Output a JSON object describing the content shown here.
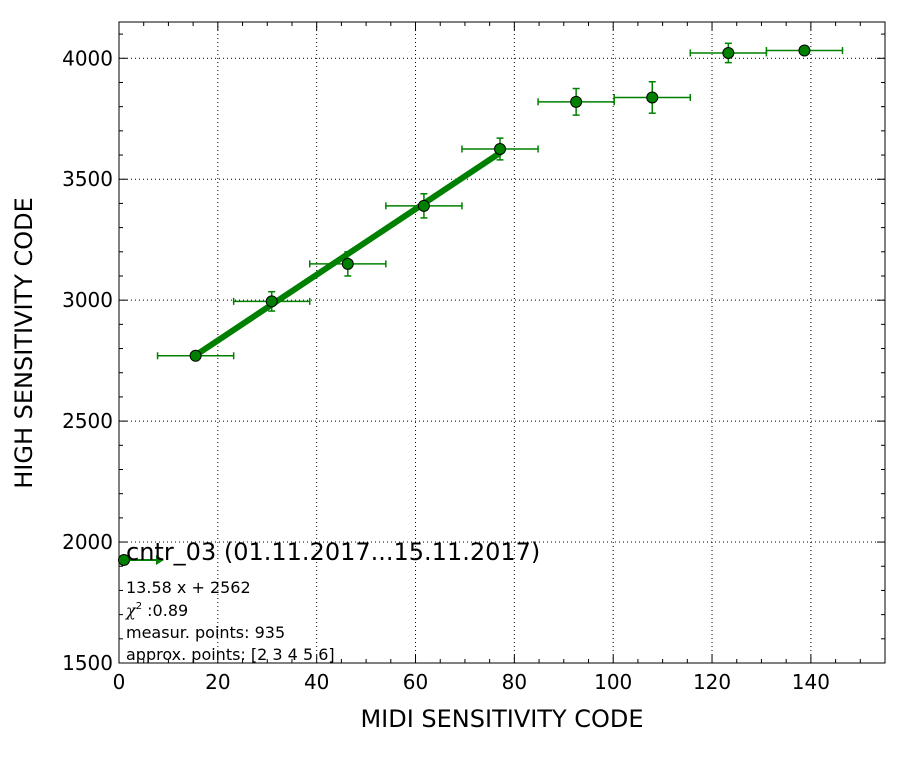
{
  "chart_data": {
    "type": "scatter",
    "xlabel": "MIDI SENSITIVITY CODE",
    "ylabel": "HIGH SENSITIVITY CODE",
    "xlim": [
      0,
      155
    ],
    "ylim": [
      1500,
      4150
    ],
    "x_ticks": [
      "0",
      "20",
      "40",
      "60",
      "80",
      "100",
      "120",
      "140"
    ],
    "y_ticks": [
      "1500",
      "2000",
      "2500",
      "3000",
      "3500",
      "4000"
    ],
    "grid": true,
    "colors": {
      "series": "#008000",
      "marker_edge": "#000000"
    },
    "series": [
      {
        "points": [
          {
            "x": 15.5,
            "y": 2770,
            "xerr": 7.7,
            "yerr": 0
          },
          {
            "x": 30.9,
            "y": 2995,
            "xerr": 7.7,
            "yerr": 40
          },
          {
            "x": 46.3,
            "y": 3150,
            "xerr": 7.7,
            "yerr": 50
          },
          {
            "x": 61.7,
            "y": 3390,
            "xerr": 7.7,
            "yerr": 50
          },
          {
            "x": 77.1,
            "y": 3625,
            "xerr": 7.7,
            "yerr": 45
          },
          {
            "x": 92.5,
            "y": 3820,
            "xerr": 7.7,
            "yerr": 55
          },
          {
            "x": 107.9,
            "y": 3838,
            "xerr": 7.7,
            "yerr": 65
          },
          {
            "x": 123.3,
            "y": 4022,
            "xerr": 7.7,
            "yerr": 40
          },
          {
            "x": 138.7,
            "y": 4032,
            "xerr": 7.7,
            "yerr": 15
          }
        ]
      }
    ],
    "fit": {
      "slope": 13.58,
      "intercept": 2562,
      "x_start": 15.5,
      "x_end": 77.1
    },
    "legend": {
      "title": "cntr_03 (01.11.2017...15.11.2017)",
      "equation": "13.58 x + 2562",
      "chi_symbol": "χ",
      "chi_sup": "2",
      "chi_value": " :0.89",
      "measur_points": "measur. points: 935",
      "approx_points": "approx. points: [2 3 4 5 6]",
      "placement": "lower-left"
    }
  }
}
